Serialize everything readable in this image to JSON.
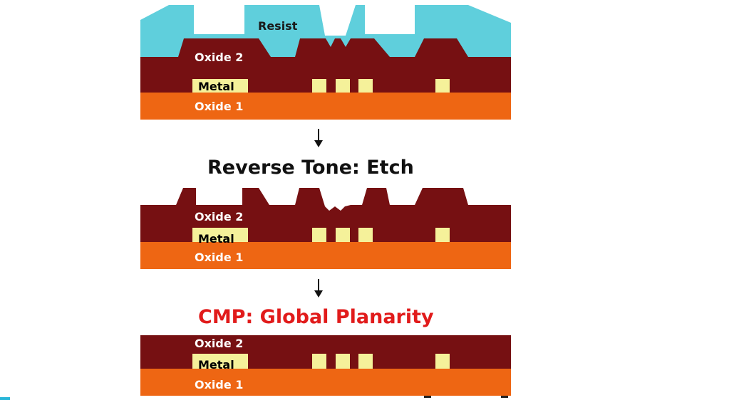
{
  "diagram": {
    "panels": {
      "p1": {
        "resist_label": "Resist",
        "oxide2_label": "Oxide 2",
        "metal_label": "Metal",
        "oxide1_label": "Oxide 1"
      },
      "p2": {
        "oxide2_label": "Oxide 2",
        "metal_label": "Metal",
        "oxide1_label": "Oxide 1"
      },
      "p3": {
        "oxide2_label": "Oxide 2",
        "metal_label": "Metal",
        "oxide1_label": "Oxide 1"
      }
    },
    "steps": {
      "etch_title": "Reverse Tone: Etch",
      "cmp_title": "CMP: Global Planarity"
    },
    "colors": {
      "resist": "#5fcfdc",
      "oxide2": "#761012",
      "oxide1": "#ee6613",
      "metal": "#f5f19a",
      "cmp_title": "#e11b1b",
      "etch_title": "#111111"
    }
  }
}
